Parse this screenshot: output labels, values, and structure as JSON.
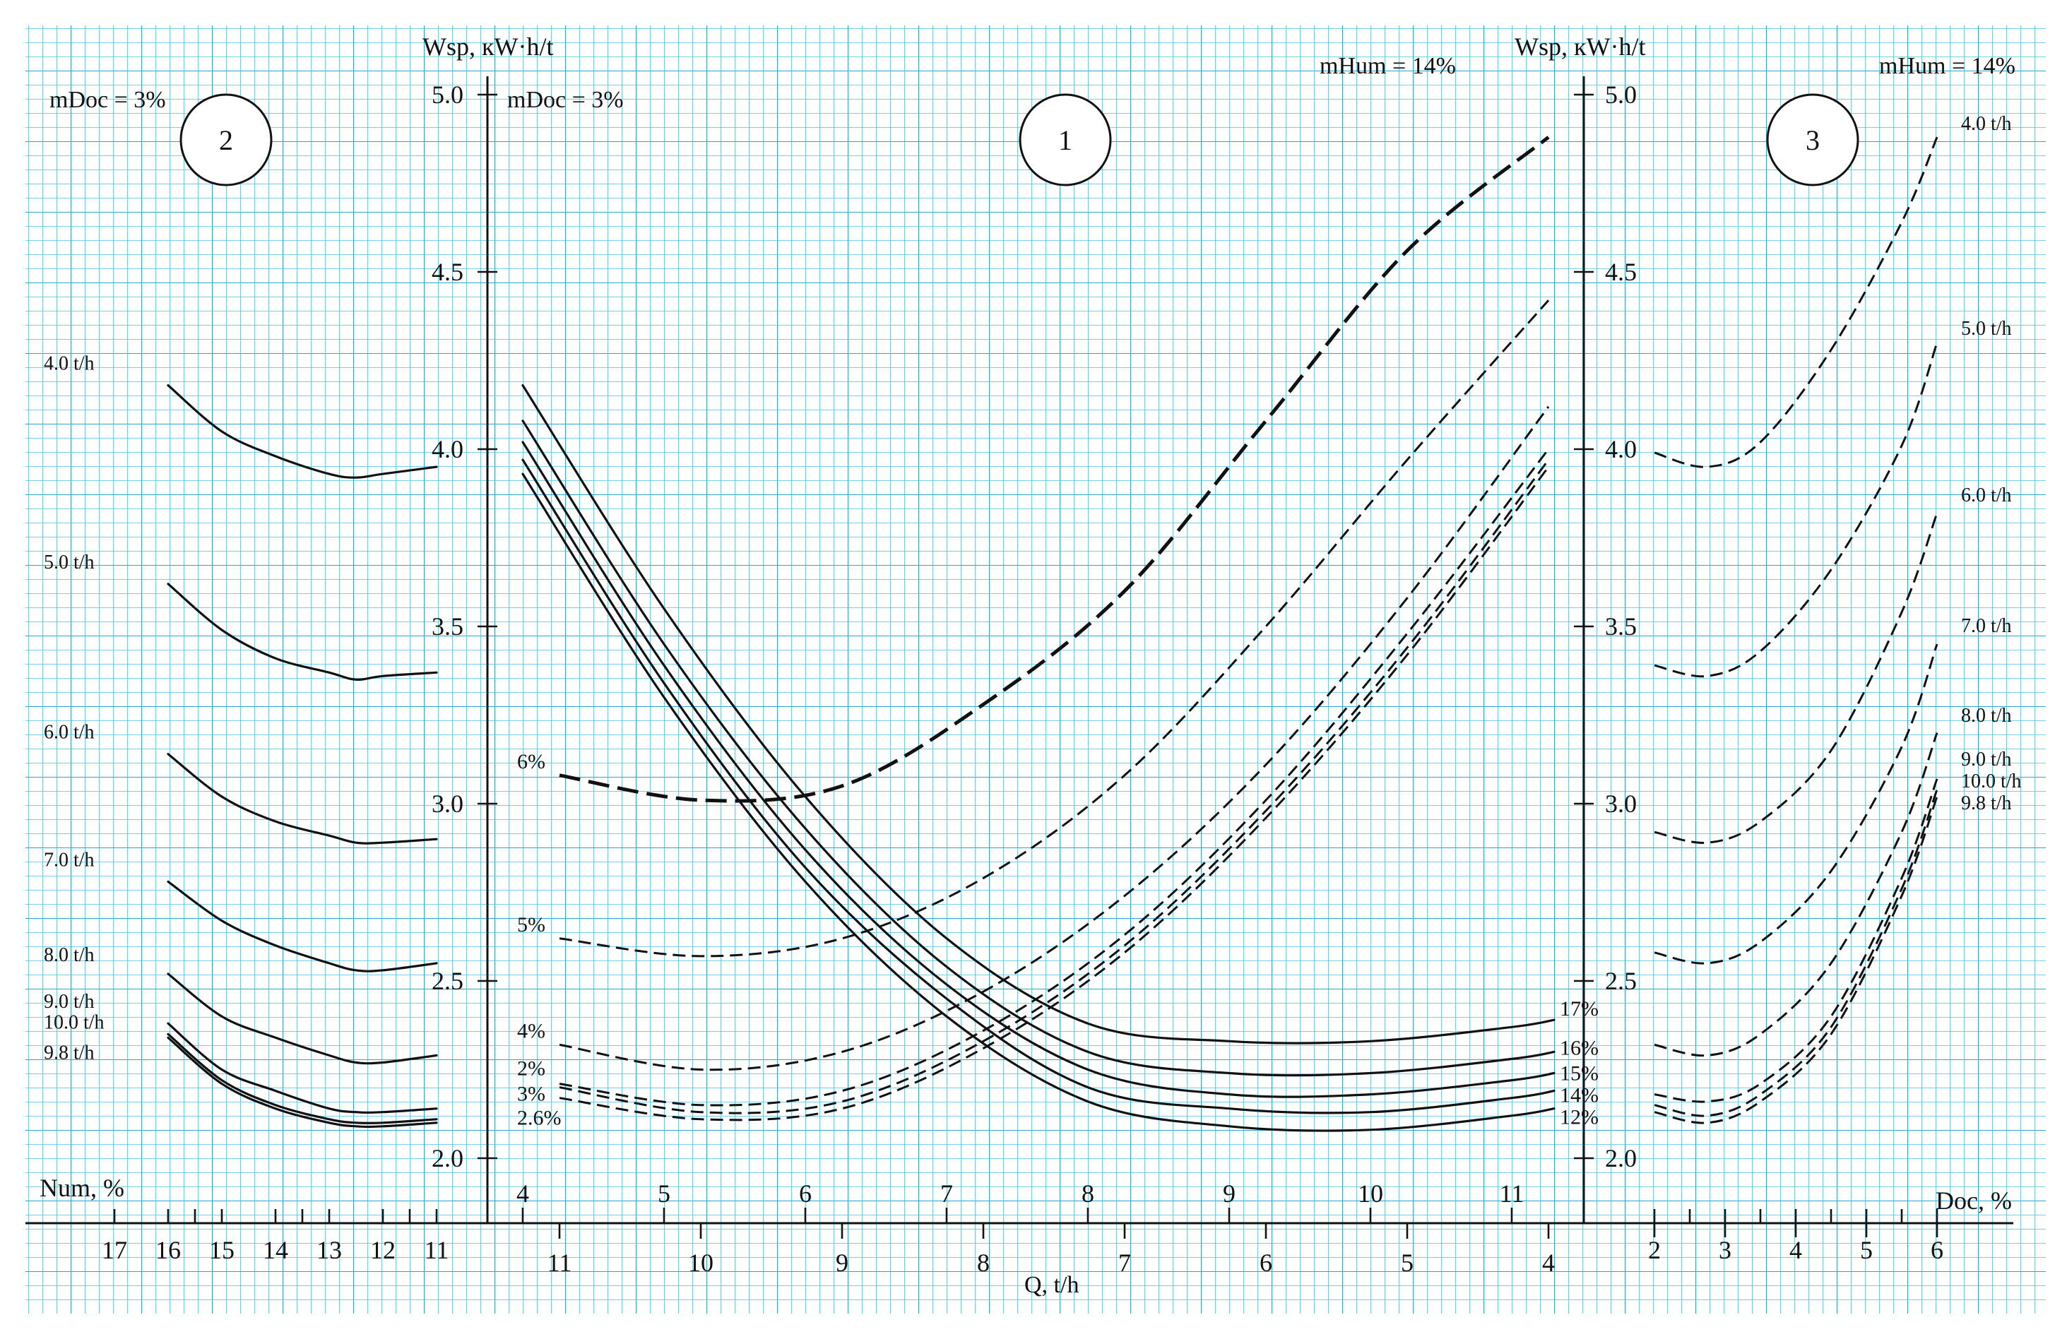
{
  "labels": {
    "wsp_main": "Wsp, кW·h/t",
    "wsp_right": "Wsp, кW·h/t",
    "mdoc_left": "mDoc = 3%",
    "mdoc_main": "mDoc = 3%",
    "mhum_main": "mHum = 14%",
    "mhum_right": "mHum = 14%",
    "num_axis": "Num, %",
    "doc_axis": "Doc, %",
    "q_axis": "Q, t/h",
    "circle_1": "1",
    "circle_2": "2",
    "circle_3": "3"
  },
  "y_ticks": [
    "5.0",
    "4.5",
    "4.0",
    "3.5",
    "3.0",
    "2.5",
    "2.0"
  ],
  "y_ticks_right": [
    "5.0",
    "4.5",
    "4.0",
    "3.5",
    "3.0",
    "2.5",
    "2.0"
  ],
  "num_ticks": [
    "17",
    "16",
    "15",
    "14",
    "13",
    "12",
    "11"
  ],
  "q_top_ticks": [
    "4",
    "5",
    "6",
    "7",
    "8",
    "9",
    "10",
    "11"
  ],
  "q_bottom_ticks": [
    "11",
    "10",
    "9",
    "8",
    "7",
    "6",
    "5",
    "4"
  ],
  "doc_ticks": [
    "2",
    "3",
    "4",
    "5",
    "6"
  ],
  "chart_data": [
    {
      "panel": "2",
      "type": "line",
      "xlabel": "Num, %",
      "ylabel": "",
      "x": [
        16,
        15,
        14,
        13,
        12.5,
        12,
        11
      ],
      "xlim": [
        17,
        11
      ],
      "ylim": [
        2.0,
        5.0
      ],
      "series": [
        {
          "name": "4.0 t/h",
          "values": [
            4.18,
            4.05,
            3.98,
            3.93,
            3.92,
            3.93,
            3.95
          ]
        },
        {
          "name": "5.0 t/h",
          "values": [
            3.62,
            3.49,
            3.41,
            3.37,
            3.35,
            3.36,
            3.37
          ]
        },
        {
          "name": "6.0 t/h",
          "values": [
            3.14,
            3.02,
            2.95,
            2.91,
            2.89,
            2.89,
            2.9
          ]
        },
        {
          "name": "7.0 t/h",
          "values": [
            2.78,
            2.67,
            2.6,
            2.55,
            2.53,
            2.53,
            2.55
          ]
        },
        {
          "name": "8.0 t/h",
          "values": [
            2.52,
            2.4,
            2.34,
            2.29,
            2.27,
            2.27,
            2.29
          ]
        },
        {
          "name": "9.0 t/h",
          "values": [
            2.38,
            2.25,
            2.19,
            2.14,
            2.13,
            2.13,
            2.14
          ]
        },
        {
          "name": "10.0 t/h",
          "values": [
            2.35,
            2.22,
            2.15,
            2.11,
            2.1,
            2.1,
            2.11
          ]
        },
        {
          "name": "9.8 t/h",
          "values": [
            2.34,
            2.21,
            2.14,
            2.1,
            2.09,
            2.09,
            2.1
          ]
        }
      ]
    },
    {
      "panel": "1",
      "type": "line",
      "xlabel": "Q, t/h",
      "ylabel": "Wsp, кW·h/t",
      "ylim": [
        2.0,
        5.0
      ],
      "series_num": {
        "x_label": "Q, t/h (top scale, 4 → 11)",
        "x": [
          4,
          5,
          6,
          7,
          8,
          9,
          10,
          11,
          11.3
        ],
        "xlim": [
          3.75,
          11.4
        ],
        "series": [
          {
            "name": "17%",
            "values": [
              4.18,
              3.55,
              3.02,
              2.62,
              2.38,
              2.33,
              2.33,
              2.37,
              2.39
            ]
          },
          {
            "name": "16%",
            "values": [
              4.08,
              3.45,
              2.93,
              2.54,
              2.3,
              2.24,
              2.24,
              2.28,
              2.3
            ]
          },
          {
            "name": "15%",
            "values": [
              4.02,
              3.39,
              2.87,
              2.49,
              2.25,
              2.18,
              2.18,
              2.22,
              2.24
            ]
          },
          {
            "name": "14%",
            "values": [
              3.97,
              3.34,
              2.82,
              2.45,
              2.2,
              2.14,
              2.13,
              2.17,
              2.19
            ]
          },
          {
            "name": "12%",
            "values": [
              3.93,
              3.3,
              2.78,
              2.4,
              2.16,
              2.09,
              2.08,
              2.12,
              2.14
            ]
          }
        ]
      },
      "series_doc": {
        "x_label": "Q, t/h (bottom scale, 11 → 4)",
        "x": [
          11,
          10,
          9,
          8,
          7,
          6,
          5,
          4
        ],
        "xlim": [
          11.3,
          4
        ],
        "series": [
          {
            "name": "6%",
            "values": [
              3.08,
              3.01,
              3.05,
              3.28,
              3.6,
              4.08,
              4.56,
              4.88
            ]
          },
          {
            "name": "5%",
            "values": [
              2.62,
              2.57,
              2.62,
              2.79,
              3.08,
              3.5,
              3.97,
              4.42
            ]
          },
          {
            "name": "4%",
            "values": [
              2.32,
              2.25,
              2.3,
              2.47,
              2.74,
              3.11,
              3.58,
              4.12
            ]
          },
          {
            "name": "3%",
            "values": [
              2.2,
              2.13,
              2.16,
              2.33,
              2.6,
              2.98,
              3.44,
              3.97
            ]
          },
          {
            "name": "2%",
            "values": [
              2.21,
              2.15,
              2.19,
              2.36,
              2.63,
              3.01,
              3.48,
              4.0
            ]
          },
          {
            "name": "2.6%",
            "values": [
              2.17,
              2.11,
              2.14,
              2.31,
              2.58,
              2.96,
              3.42,
              3.95
            ]
          }
        ]
      }
    },
    {
      "panel": "3",
      "type": "line",
      "xlabel": "Doc, %",
      "ylabel": "Wsp, кW·h/t",
      "x": [
        2,
        2.75,
        3.5,
        4.5,
        5.5,
        6
      ],
      "xlim": [
        1.7,
        6.5
      ],
      "ylim": [
        2.0,
        5.0
      ],
      "series": [
        {
          "name": "4.0 t/h",
          "values": [
            3.99,
            3.95,
            4.02,
            4.28,
            4.64,
            4.88
          ]
        },
        {
          "name": "5.0 t/h",
          "values": [
            3.39,
            3.36,
            3.43,
            3.66,
            4.01,
            4.3
          ]
        },
        {
          "name": "6.0 t/h",
          "values": [
            2.92,
            2.89,
            2.95,
            3.15,
            3.54,
            3.82
          ]
        },
        {
          "name": "7.0 t/h",
          "values": [
            2.58,
            2.55,
            2.61,
            2.81,
            3.16,
            3.45
          ]
        },
        {
          "name": "8.0 t/h",
          "values": [
            2.32,
            2.29,
            2.35,
            2.55,
            2.92,
            3.2
          ]
        },
        {
          "name": "9.0 t/h",
          "values": [
            2.18,
            2.16,
            2.21,
            2.4,
            2.79,
            3.07
          ]
        },
        {
          "name": "10.0 t/h",
          "values": [
            2.15,
            2.12,
            2.18,
            2.37,
            2.76,
            3.04
          ]
        },
        {
          "name": "9.8 t/h",
          "values": [
            2.13,
            2.1,
            2.16,
            2.35,
            2.74,
            3.02
          ]
        }
      ]
    }
  ]
}
